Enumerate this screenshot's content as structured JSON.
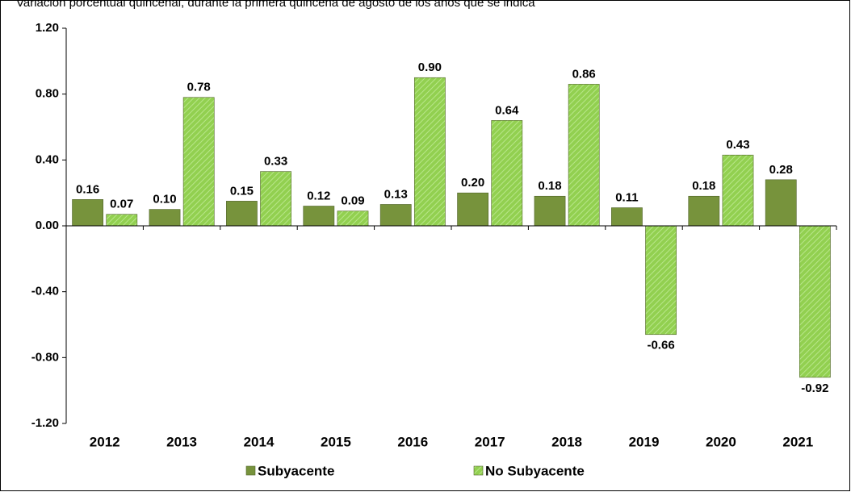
{
  "chart_data": {
    "type": "bar",
    "subtitle": "Variación porcentual quincenal, durante la primera quincena de agosto de los años que se indica",
    "categories": [
      "2012",
      "2013",
      "2014",
      "2015",
      "2016",
      "2017",
      "2018",
      "2019",
      "2020",
      "2021"
    ],
    "series": [
      {
        "name": "Subyacente",
        "color": "#77933c",
        "hatch": false,
        "values": [
          0.16,
          0.1,
          0.15,
          0.12,
          0.13,
          0.2,
          0.18,
          0.11,
          0.18,
          0.28
        ],
        "value_labels": [
          "0.16",
          "0.10",
          "0.15",
          "0.12",
          "0.13",
          "0.20",
          "0.18",
          "0.11",
          "0.18",
          "0.28"
        ]
      },
      {
        "name": "No Subyacente",
        "color": "#92d050",
        "hatch": true,
        "values": [
          0.07,
          0.78,
          0.33,
          0.09,
          0.9,
          0.64,
          0.86,
          -0.66,
          0.43,
          -0.92
        ],
        "value_labels": [
          "0.07",
          "0.78",
          "0.33",
          "0.09",
          "0.90",
          "0.64",
          "0.86",
          "-0.66",
          "0.43",
          "-0.92"
        ]
      }
    ],
    "ylim": [
      -1.2,
      1.2
    ],
    "yticks": [
      {
        "value": -1.2,
        "label": "-1.20"
      },
      {
        "value": -0.8,
        "label": "-0.80"
      },
      {
        "value": -0.4,
        "label": "-0.40"
      },
      {
        "value": 0,
        "label": "0.00"
      },
      {
        "value": 0.4,
        "label": "0.40"
      },
      {
        "value": 0.8,
        "label": "0.80"
      },
      {
        "value": 1.2,
        "label": "1.20"
      }
    ],
    "grid": false,
    "legend": "bottom"
  }
}
